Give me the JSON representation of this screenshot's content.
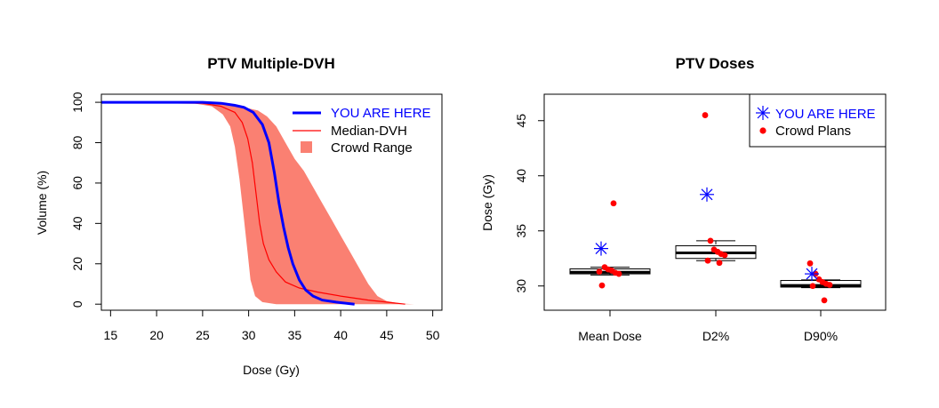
{
  "chart_data": [
    {
      "type": "line",
      "title": "PTV Multiple-DVH",
      "xlabel": "Dose (Gy)",
      "ylabel": "Volume (%)",
      "xlim": [
        14,
        51
      ],
      "ylim": [
        -3,
        104
      ],
      "x_ticks": [
        15,
        20,
        25,
        30,
        35,
        40,
        45,
        50
      ],
      "y_ticks": [
        0,
        20,
        40,
        60,
        80,
        100
      ],
      "legend_position": "top-right",
      "grid": false,
      "series": [
        {
          "name": "YOU ARE HERE",
          "color": "#0000ff",
          "points": [
            [
              14,
              100
            ],
            [
              25,
              100
            ],
            [
              27,
              99.5
            ],
            [
              28.5,
              98.5
            ],
            [
              29.5,
              97.5
            ],
            [
              30.5,
              95
            ],
            [
              31.5,
              89
            ],
            [
              32.2,
              80
            ],
            [
              32.8,
              65
            ],
            [
              33.3,
              50
            ],
            [
              33.8,
              38
            ],
            [
              34.3,
              28
            ],
            [
              34.8,
              20
            ],
            [
              35.5,
              12
            ],
            [
              36.2,
              7
            ],
            [
              37,
              4
            ],
            [
              38,
              2
            ],
            [
              39.5,
              1
            ],
            [
              41.5,
              0
            ]
          ]
        },
        {
          "name": "Median-DVH",
          "color": "#ff0000",
          "points": [
            [
              14,
              100
            ],
            [
              25,
              99.5
            ],
            [
              27,
              98
            ],
            [
              28.5,
              95
            ],
            [
              29.3,
              90
            ],
            [
              29.9,
              82
            ],
            [
              30.4,
              70
            ],
            [
              30.8,
              55
            ],
            [
              31.2,
              40
            ],
            [
              31.6,
              30
            ],
            [
              32.2,
              22
            ],
            [
              33,
              16
            ],
            [
              34,
              11
            ],
            [
              35.5,
              8
            ],
            [
              37.5,
              6
            ],
            [
              40,
              4
            ],
            [
              43,
              2
            ],
            [
              45,
              1
            ],
            [
              47,
              0
            ]
          ]
        },
        {
          "name": "Crowd Range",
          "color": "#fa8072",
          "upper": [
            [
              14,
              100
            ],
            [
              22,
              100
            ],
            [
              26,
              99.5
            ],
            [
              29,
              98
            ],
            [
              31,
              96
            ],
            [
              32,
              93
            ],
            [
              33,
              88
            ],
            [
              34,
              80
            ],
            [
              35,
              72
            ],
            [
              36,
              66
            ],
            [
              37,
              58
            ],
            [
              38,
              50
            ],
            [
              39,
              42
            ],
            [
              40,
              34
            ],
            [
              41,
              26
            ],
            [
              42,
              18
            ],
            [
              43,
              10
            ],
            [
              44,
              4
            ],
            [
              45,
              1.5
            ],
            [
              46.5,
              0.3
            ],
            [
              48,
              0
            ]
          ],
          "lower": [
            [
              48,
              0
            ],
            [
              33,
              0
            ],
            [
              31.5,
              1
            ],
            [
              30.7,
              4
            ],
            [
              30.2,
              12
            ],
            [
              29.9,
              25
            ],
            [
              29.5,
              42
            ],
            [
              29.0,
              62
            ],
            [
              28.5,
              78
            ],
            [
              28,
              88
            ],
            [
              27.2,
              94
            ],
            [
              26,
              98
            ],
            [
              24,
              99.5
            ],
            [
              14,
              100
            ]
          ]
        }
      ]
    },
    {
      "type": "box",
      "title": "PTV Doses",
      "xlabel": "",
      "ylabel": "Dose (Gy)",
      "ylim": [
        27.8,
        47.4
      ],
      "y_ticks": [
        30,
        35,
        40,
        45
      ],
      "categories": [
        "Mean Dose",
        "D2%",
        "D90%"
      ],
      "legend_position": "top-right",
      "legend": [
        {
          "label": "YOU ARE HERE",
          "color": "#0000ff",
          "marker": "asterisk"
        },
        {
          "label": "Crowd Plans",
          "color": "#ff0000",
          "marker": "dot"
        }
      ],
      "boxes": [
        {
          "min": 31.0,
          "q1": 31.1,
          "median": 31.25,
          "q3": 31.55,
          "max": 31.7
        },
        {
          "min": 32.3,
          "q1": 32.5,
          "median": 33.0,
          "q3": 33.65,
          "max": 34.1
        },
        {
          "min": 29.85,
          "q1": 29.9,
          "median": 30.05,
          "q3": 30.5,
          "max": 30.55
        }
      ],
      "you_are_here": [
        33.4,
        38.3,
        31.1
      ],
      "crowd_plans": [
        [
          31.3,
          31.7,
          31.5,
          31.4,
          31.2,
          31.1,
          30.05,
          37.5
        ],
        [
          45.5,
          34.1,
          33.3,
          33.1,
          32.9,
          32.8,
          32.3,
          32.1
        ],
        [
          32.05,
          31.1,
          30.6,
          30.35,
          30.2,
          30.1,
          30.0,
          28.7
        ]
      ]
    }
  ]
}
